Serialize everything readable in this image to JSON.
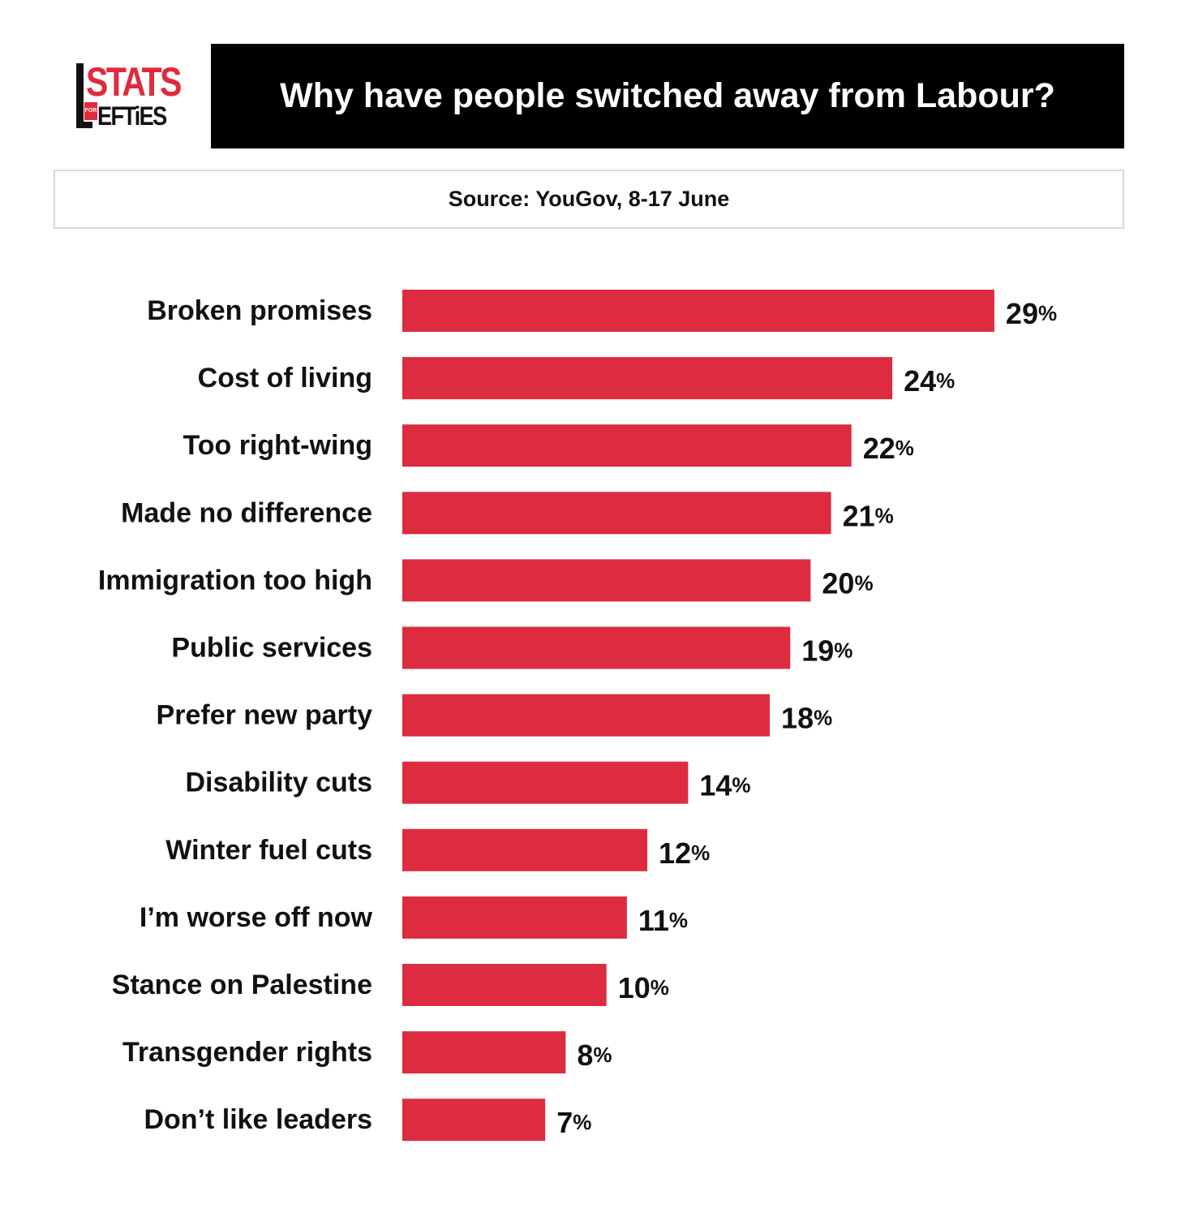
{
  "logo": {
    "stats": "STATS",
    "for": "FOR",
    "lefties": "EFTiES"
  },
  "title": "Why have people switched away from Labour?",
  "source": "Source: YouGov, 8-17 June",
  "colors": {
    "bar": "#dd2c40",
    "title_bg": "#000000",
    "logo_red": "#e12a3d"
  },
  "chart_data": {
    "type": "bar",
    "orientation": "horizontal",
    "categories": [
      "Broken promises",
      "Cost of living",
      "Too right-wing",
      "Made no difference",
      "Immigration too high",
      "Public services",
      "Prefer new party",
      "Disability cuts",
      "Winter fuel cuts",
      "I’m worse off now",
      "Stance on Palestine",
      "Transgender rights",
      "Don’t like leaders"
    ],
    "values": [
      29,
      24,
      22,
      21,
      20,
      19,
      18,
      14,
      12,
      11,
      10,
      8,
      7
    ],
    "value_suffix": "%",
    "grid": false,
    "legend": "none"
  }
}
